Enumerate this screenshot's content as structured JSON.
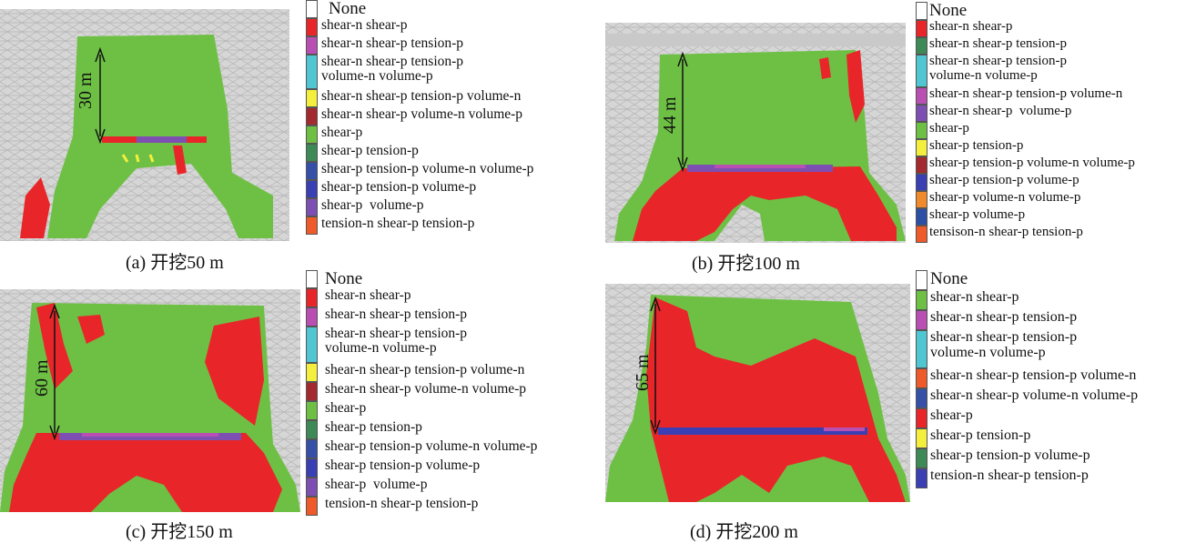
{
  "panels": [
    {
      "id": "a",
      "caption": "(a)  开挖50 m",
      "dimension_label": "30 m",
      "legend": [
        {
          "label": "None",
          "color": "#ffffff"
        },
        {
          "label": "shear-n shear-p",
          "color": "#e8262a"
        },
        {
          "label": "shear-n shear-p tension-p",
          "color": "#b94fb2"
        },
        {
          "label": "shear-n shear-p tension-p\nvolume-n volume-p",
          "color": "#4fc6d2"
        },
        {
          "label": "shear-n shear-p tension-p volume-n",
          "color": "#f3ef3c"
        },
        {
          "label": "shear-n shear-p volume-n volume-p",
          "color": "#a32a2e"
        },
        {
          "label": "shear-p",
          "color": "#6ec045"
        },
        {
          "label": "shear-p tension-p",
          "color": "#3e8a57"
        },
        {
          "label": "shear-p tension-p volume-n volume-p",
          "color": "#3550a6"
        },
        {
          "label": "shear-p tension-p volume-p",
          "color": "#3a3fb4"
        },
        {
          "label": "shear-p  volume-p",
          "color": "#7e4fb2"
        },
        {
          "label": "tension-n shear-p tension-p",
          "color": "#ef5a2b"
        }
      ]
    },
    {
      "id": "b",
      "caption": "(b)  开挖100 m",
      "dimension_label": "44 m",
      "legend": [
        {
          "label": "None",
          "color": "#ffffff"
        },
        {
          "label": "shear-n shear-p",
          "color": "#e8262a"
        },
        {
          "label": "shear-n shear-p tension-p",
          "color": "#3e8a57"
        },
        {
          "label": "shear-n shear-p tension-p\nvolume-n volume-p",
          "color": "#4fc6d2"
        },
        {
          "label": "shear-n shear-p tension-p volume-n",
          "color": "#b94fb2"
        },
        {
          "label": "shear-n shear-p  volume-p",
          "color": "#7e4fb2"
        },
        {
          "label": "shear-p",
          "color": "#6ec045"
        },
        {
          "label": "shear-p tension-p",
          "color": "#f3ef3c"
        },
        {
          "label": "shear-p tension-p volume-n volume-p",
          "color": "#a32a2e"
        },
        {
          "label": "shear-p tension-p volume-p",
          "color": "#3a3fb4"
        },
        {
          "label": "shear-p volume-n volume-p",
          "color": "#f08a2b"
        },
        {
          "label": "shear-p volume-p",
          "color": "#2c4fa6"
        },
        {
          "label": "tensison-n shear-p tension-p",
          "color": "#ef5a2b"
        }
      ]
    },
    {
      "id": "c",
      "caption": "(c)  开挖150 m",
      "dimension_label": "60 m",
      "legend": [
        {
          "label": "None",
          "color": "#ffffff"
        },
        {
          "label": "shear-n shear-p",
          "color": "#e8262a"
        },
        {
          "label": "shear-n shear-p tension-p",
          "color": "#b94fb2"
        },
        {
          "label": "shear-n shear-p tension-p\nvolume-n volume-p",
          "color": "#4fc6d2"
        },
        {
          "label": "shear-n shear-p tension-p volume-n",
          "color": "#f3ef3c"
        },
        {
          "label": "shear-n shear-p volume-n volume-p",
          "color": "#a32a2e"
        },
        {
          "label": "shear-p",
          "color": "#6ec045"
        },
        {
          "label": "shear-p tension-p",
          "color": "#3e8a57"
        },
        {
          "label": "shear-p tension-p volume-n volume-p",
          "color": "#3550a6"
        },
        {
          "label": "shear-p tension-p volume-p",
          "color": "#3a3fb4"
        },
        {
          "label": "shear-p  volume-p",
          "color": "#7e4fb2"
        },
        {
          "label": "tension-n shear-p tension-p",
          "color": "#ef5a2b"
        }
      ]
    },
    {
      "id": "d",
      "caption": "(d)  开挖200 m",
      "dimension_label": "65 m",
      "legend": [
        {
          "label": "None",
          "color": "#ffffff"
        },
        {
          "label": "shear-n shear-p",
          "color": "#6ec045"
        },
        {
          "label": "shear-n shear-p tension-p",
          "color": "#b94fb2"
        },
        {
          "label": "shear-n shear-p tension-p\nvolume-n volume-p",
          "color": "#4fc6d2"
        },
        {
          "label": "shear-n shear-p tension-p volume-n",
          "color": "#ef5a2b"
        },
        {
          "label": "shear-n shear-p volume-n volume-p",
          "color": "#3550a6"
        },
        {
          "label": "shear-p",
          "color": "#e8262a"
        },
        {
          "label": "shear-p tension-p",
          "color": "#f3ef3c"
        },
        {
          "label": "shear-p tension-p volume-p",
          "color": "#3e8a57"
        },
        {
          "label": "tension-n shear-p tension-p",
          "color": "#3a3fb4"
        }
      ]
    }
  ]
}
